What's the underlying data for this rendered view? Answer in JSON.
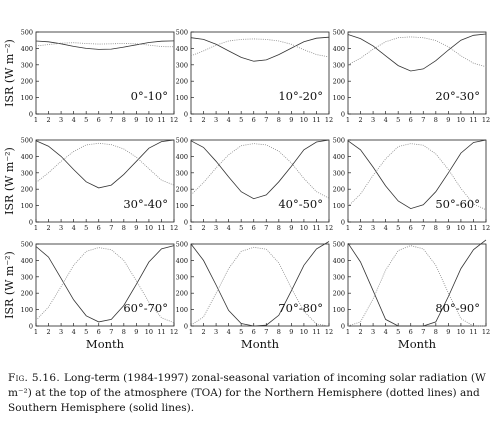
{
  "chart_data": {
    "type": "line",
    "ylabel": "ISR (W m⁻²)",
    "xlabel": "Month",
    "x": [
      1,
      2,
      3,
      4,
      5,
      6,
      7,
      8,
      9,
      10,
      11,
      12
    ],
    "xticks": [
      "1",
      "2",
      "3",
      "4",
      "5",
      "6",
      "7",
      "8",
      "9",
      "10",
      "11",
      "12"
    ],
    "ylim": [
      0,
      500
    ],
    "yticks": [
      "0",
      "100",
      "200",
      "300",
      "400",
      "500"
    ],
    "panels": [
      {
        "label": "0°-10°",
        "series": [
          {
            "style": "solid",
            "values": [
              445,
              440,
              428,
              412,
              400,
              394,
              396,
              408,
              422,
              436,
              444,
              446
            ]
          },
          {
            "style": "dotted",
            "values": [
              415,
              423,
              432,
              435,
              430,
              426,
              428,
              430,
              428,
              420,
              411,
              410
            ]
          }
        ]
      },
      {
        "label": "10°-20°",
        "series": [
          {
            "style": "solid",
            "values": [
              465,
              455,
              425,
              385,
              345,
              322,
              330,
              362,
              402,
              440,
              462,
              468
            ]
          },
          {
            "style": "dotted",
            "values": [
              355,
              385,
              420,
              445,
              455,
              458,
              455,
              445,
              425,
              392,
              362,
              348
            ]
          }
        ]
      },
      {
        "label": "20°-30°",
        "series": [
          {
            "style": "solid",
            "values": [
              485,
              460,
              415,
              355,
              295,
              262,
              275,
              325,
              390,
              450,
              480,
              488
            ]
          },
          {
            "style": "dotted",
            "values": [
              300,
              340,
              395,
              440,
              465,
              470,
              465,
              448,
              410,
              355,
              310,
              288
            ]
          }
        ]
      },
      {
        "label": "30°-40°",
        "series": [
          {
            "style": "solid",
            "values": [
              495,
              462,
              400,
              320,
              245,
              208,
              225,
              290,
              370,
              450,
              490,
              500
            ]
          },
          {
            "style": "dotted",
            "values": [
              240,
              300,
              370,
              430,
              470,
              480,
              472,
              445,
              395,
              325,
              255,
              225
            ]
          }
        ]
      },
      {
        "label": "40°-50°",
        "series": [
          {
            "style": "solid",
            "values": [
              495,
              455,
              370,
              275,
              185,
              142,
              165,
              245,
              340,
              440,
              488,
              500
            ]
          },
          {
            "style": "dotted",
            "values": [
              165,
              240,
              330,
              410,
              465,
              478,
              470,
              432,
              360,
              265,
              185,
              145
            ]
          }
        ]
      },
      {
        "label": "50°-60°",
        "series": [
          {
            "style": "solid",
            "values": [
              495,
              440,
              335,
              220,
              128,
              82,
              105,
              185,
              300,
              420,
              485,
              500
            ]
          },
          {
            "style": "dotted",
            "values": [
              95,
              170,
              285,
              385,
              460,
              478,
              468,
              415,
              320,
              205,
              110,
              75
            ]
          }
        ]
      },
      {
        "label": "60°-70°",
        "series": [
          {
            "style": "solid",
            "values": [
              485,
              420,
              290,
              160,
              62,
              25,
              40,
              125,
              255,
              390,
              470,
              490
            ]
          },
          {
            "style": "dotted",
            "values": [
              35,
              115,
              240,
              370,
              455,
              478,
              465,
              400,
              275,
              145,
              50,
              20
            ]
          }
        ]
      },
      {
        "label": "70°-80°",
        "series": [
          {
            "style": "solid",
            "values": [
              500,
              400,
              250,
              95,
              15,
              0,
              5,
              65,
              215,
              370,
              470,
              515
            ]
          },
          {
            "style": "dotted",
            "values": [
              5,
              55,
              200,
              350,
              455,
              480,
              468,
              385,
              230,
              90,
              12,
              0
            ]
          }
        ]
      },
      {
        "label": "80°-90°",
        "series": [
          {
            "style": "solid",
            "values": [
              505,
              390,
              215,
              40,
              0,
              0,
              0,
              25,
              180,
              350,
              465,
              525
            ]
          },
          {
            "style": "dotted",
            "values": [
              0,
              25,
              165,
              340,
              460,
              490,
              470,
              370,
              200,
              45,
              0,
              0
            ]
          }
        ]
      }
    ]
  },
  "caption": {
    "label": "Fig. 5.16.",
    "text": "Long-term (1984-1997) zonal-seasonal variation of incoming solar radiation (W m⁻²) at the top of the atmosphere (TOA) for the Northern Hemisphere (dotted lines) and Southern Hemisphere (solid lines)."
  }
}
